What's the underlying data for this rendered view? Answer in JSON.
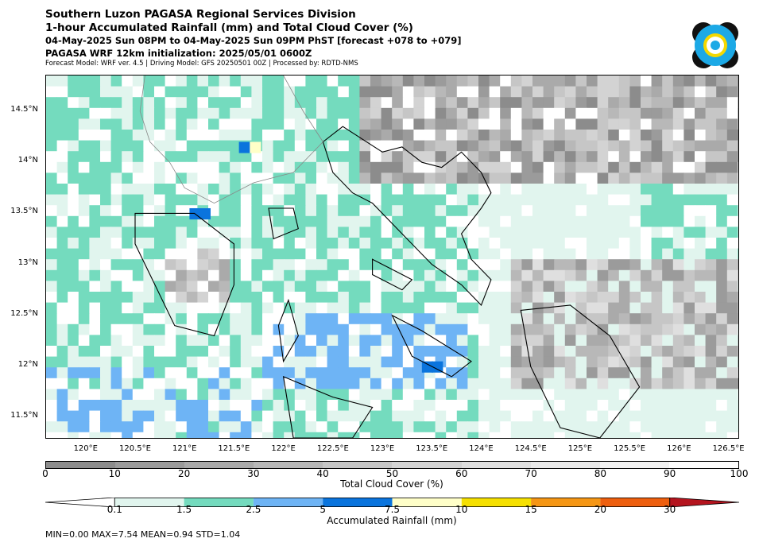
{
  "header": {
    "line1": "Southern Luzon PAGASA Regional Services Division",
    "line2": "1-hour Accumulated Rainfall (mm) and Total Cloud Cover (%)",
    "line3": "04-May-2025 Sun 08PM to 04-May-2025 Sun 09PM PhST [forecast +078 to +079]",
    "line4": "PAGASA WRF 12km initialization: 2025/05/01 0600Z",
    "line5": "Forecast Model: WRF ver. 4.5 | Driving Model: GFS 20250501 00Z | Processed by: RDTD-NMS"
  },
  "map": {
    "lon_range": [
      119.6,
      126.6
    ],
    "lat_range": [
      11.3,
      14.85
    ],
    "lat_ticks": [
      "14.5°N",
      "14°N",
      "13.5°N",
      "13°N",
      "12.5°N",
      "12°N",
      "11.5°N"
    ],
    "lat_values": [
      14.5,
      14.0,
      13.5,
      13.0,
      12.5,
      12.0,
      11.5
    ],
    "lon_ticks": [
      "120°E",
      "120.5°E",
      "121°E",
      "121.5°E",
      "122°E",
      "122.5°E",
      "123°E",
      "123.5°E",
      "124°E",
      "124.5°E",
      "125°E",
      "125.5°E",
      "126°E",
      "126.5°E"
    ],
    "lon_values": [
      120.0,
      120.5,
      121.0,
      121.5,
      122.0,
      122.5,
      123.0,
      123.5,
      124.0,
      124.5,
      125.0,
      125.5,
      126.0,
      126.5
    ]
  },
  "cloud_colorbar": {
    "title": "Total Cloud Cover (%)",
    "ticks": [
      "0",
      "10",
      "20",
      "30",
      "40",
      "50",
      "60",
      "70",
      "80",
      "90",
      "100"
    ],
    "colors": [
      "#8c8c8c",
      "#9b9b9b",
      "#aaaaaa",
      "#b8b8b8",
      "#c6c6c6",
      "#d3d3d3",
      "#dfdfdf",
      "#e9e9e9",
      "#f2f2f2",
      "#ffffff"
    ]
  },
  "rain_colorbar": {
    "title": "Accumulated Rainfall (mm)",
    "ticks": [
      "0.1",
      "1.5",
      "2.5",
      "5",
      "7.5",
      "10",
      "15",
      "20",
      "30"
    ],
    "colors": [
      "#e1f5ee",
      "#74dbbe",
      "#6eb4f5",
      "#0a74dd",
      "#ffffc8",
      "#f5e000",
      "#f59614",
      "#ee5f0e",
      "#b4141e"
    ]
  },
  "stats": "MIN=0.00   MAX=7.54   MEAN=0.94   STD=1.04",
  "colors": {
    "no_rain_cloud": "#ffffff",
    "coastline": "#000000",
    "admin_lines": "#888888"
  }
}
